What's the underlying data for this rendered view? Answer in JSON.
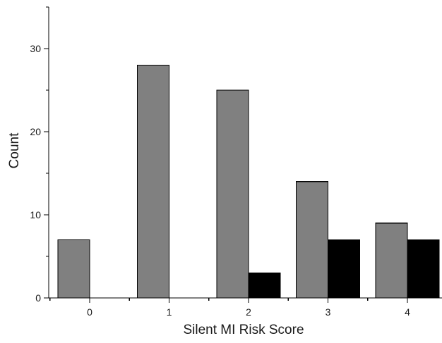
{
  "chart_data": {
    "type": "bar",
    "xlabel": "Silent MI Risk Score",
    "ylabel": "Count",
    "categories": [
      "0",
      "1",
      "2",
      "3",
      "4"
    ],
    "series": [
      {
        "values": [
          7,
          28,
          25,
          14,
          9
        ],
        "color": "#808080"
      },
      {
        "values": [
          0,
          0,
          3,
          7,
          7
        ],
        "color": "#000000"
      }
    ],
    "ylim": [
      0,
      35
    ],
    "yticks": [
      0,
      10,
      20,
      30
    ],
    "grid": false,
    "legend": "none"
  }
}
